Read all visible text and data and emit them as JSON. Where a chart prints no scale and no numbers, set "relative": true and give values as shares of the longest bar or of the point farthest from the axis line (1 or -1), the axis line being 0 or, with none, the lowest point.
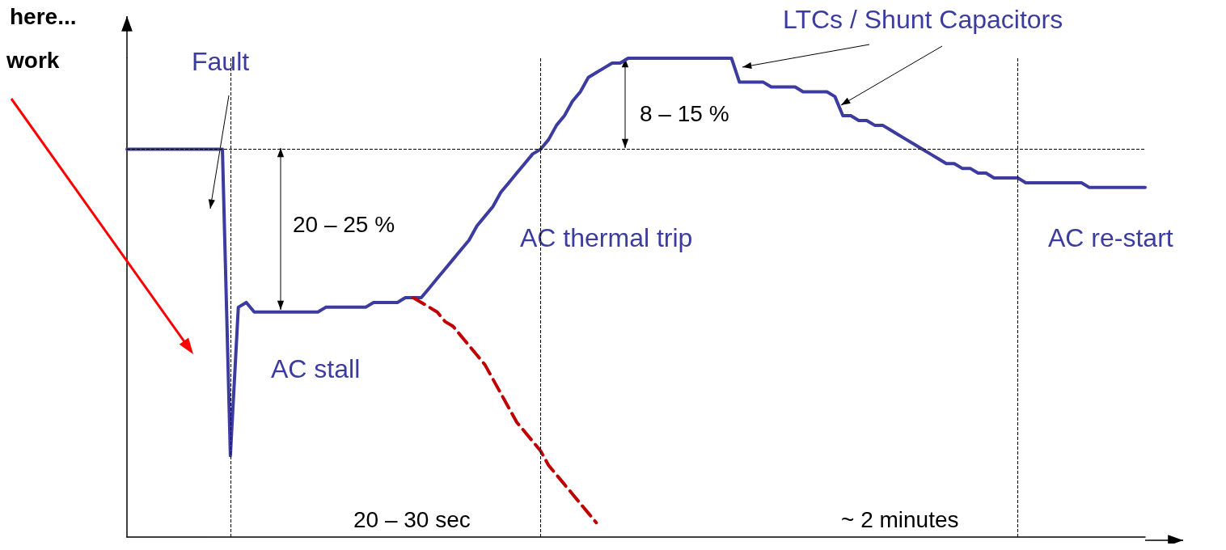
{
  "chart_data": {
    "type": "line",
    "relative": true,
    "marker": "none",
    "grid": false,
    "legend": false,
    "categories": [
      null,
      null,
      null,
      null,
      null,
      null,
      null,
      null,
      null,
      null,
      null,
      null,
      null,
      null,
      null,
      null,
      null,
      null,
      null,
      null,
      null,
      null,
      null,
      null,
      null,
      null,
      null,
      null,
      null,
      null,
      null,
      null,
      null,
      null,
      null,
      null,
      null,
      null,
      null,
      null,
      null,
      null,
      null,
      null,
      null,
      null,
      null,
      null,
      null,
      null,
      null,
      null,
      null,
      null,
      null,
      null,
      null,
      null,
      null,
      null,
      null,
      null,
      null,
      null,
      null,
      null,
      null,
      null,
      null,
      null,
      null,
      null,
      null,
      null,
      null,
      null,
      null,
      null,
      null,
      null,
      null,
      null,
      null,
      null,
      null,
      null,
      null,
      null,
      null,
      null,
      null,
      null,
      null,
      null,
      null,
      null,
      null,
      null,
      null,
      null,
      null,
      null,
      null,
      null,
      null,
      null,
      null,
      null,
      null,
      null,
      null,
      null,
      null,
      null,
      null,
      null,
      null,
      null,
      null,
      null,
      null,
      null,
      null,
      null,
      null,
      null,
      null,
      null,
      null
    ],
    "series": [
      {
        "color": "#3c3ca0",
        "line_style": "solid",
        "values": [
          0.81,
          0.81,
          0.81,
          0.81,
          0.81,
          0.81,
          0.81,
          0.81,
          0.81,
          0.81,
          0.81,
          0.81,
          0.81,
          0.17,
          0.48,
          0.49,
          0.47,
          0.47,
          0.47,
          0.47,
          0.47,
          0.47,
          0.47,
          0.47,
          0.47,
          0.48,
          0.48,
          0.48,
          0.48,
          0.48,
          0.48,
          0.49,
          0.49,
          0.49,
          0.49,
          0.5,
          0.5,
          0.5,
          0.52,
          0.54,
          0.56,
          0.58,
          0.6,
          0.62,
          0.65,
          0.67,
          0.69,
          0.72,
          0.74,
          0.76,
          0.78,
          0.8,
          0.81,
          0.83,
          0.86,
          0.88,
          0.91,
          0.93,
          0.96,
          0.97,
          0.98,
          0.99,
          0.99,
          1,
          1,
          1,
          1,
          1,
          1,
          1,
          1,
          1,
          1,
          1,
          1,
          1,
          1,
          0.95,
          0.95,
          0.95,
          0.95,
          0.94,
          0.94,
          0.94,
          0.94,
          0.93,
          0.93,
          0.93,
          0.93,
          0.92,
          0.88,
          0.88,
          0.87,
          0.87,
          0.86,
          0.86,
          0.85,
          0.84,
          0.83,
          0.82,
          0.81,
          0.8,
          0.79,
          0.78,
          0.78,
          0.77,
          0.77,
          0.76,
          0.76,
          0.75,
          0.75,
          0.75,
          0.75,
          0.74,
          0.74,
          0.74,
          0.74,
          0.74,
          0.74,
          0.74,
          0.74,
          0.73,
          0.73,
          0.73,
          0.73,
          0.73,
          0.73,
          0.73,
          0.73
        ]
      },
      {
        "color": "#c00000",
        "line_style": "dashed",
        "values": [
          null,
          null,
          null,
          null,
          null,
          null,
          null,
          null,
          null,
          null,
          null,
          null,
          null,
          null,
          null,
          null,
          null,
          null,
          null,
          null,
          null,
          null,
          null,
          null,
          null,
          null,
          null,
          null,
          null,
          null,
          null,
          null,
          null,
          null,
          null,
          null,
          0.5,
          0.49,
          0.48,
          0.47,
          0.45,
          0.44,
          0.42,
          0.4,
          0.38,
          0.36,
          0.33,
          0.3,
          0.27,
          0.24,
          0.22,
          0.2,
          0.18,
          0.15,
          0.13,
          0.11,
          0.09,
          0.07,
          0.05,
          0.03,
          null,
          null,
          null,
          null,
          null,
          null,
          null,
          null,
          null,
          null,
          null,
          null,
          null,
          null,
          null,
          null,
          null,
          null,
          null,
          null,
          null,
          null,
          null,
          null,
          null,
          null,
          null,
          null,
          null,
          null,
          null,
          null,
          null,
          null,
          null,
          null,
          null,
          null,
          null,
          null,
          null,
          null,
          null,
          null,
          null,
          null,
          null,
          null,
          null,
          null,
          null,
          null,
          null,
          null,
          null,
          null,
          null,
          null,
          null,
          null,
          null,
          null,
          null,
          null,
          null,
          null,
          null,
          null,
          null
        ]
      }
    ],
    "ref_lines": [
      {
        "axis": "y",
        "value": 0.81,
        "line_style": "dashed",
        "color": "#000000"
      }
    ],
    "annotations": [
      "here...",
      "work",
      "Fault",
      "LTCs / Shunt Capacitors",
      "8 – 15 %",
      "20 – 25 %",
      "AC thermal trip",
      "AC re-start",
      "AC stall",
      "20 – 30 sec",
      "~ 2 minutes"
    ]
  }
}
